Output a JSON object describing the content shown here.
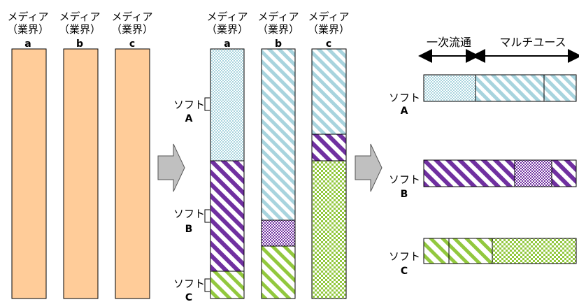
{
  "left": {
    "media": [
      {
        "label": "メディア",
        "sub": "（業界）",
        "letter": "a"
      },
      {
        "label": "メディア",
        "sub": "（業界）",
        "letter": "b"
      },
      {
        "label": "メディア",
        "sub": "（業界）",
        "letter": "c"
      }
    ]
  },
  "middle": {
    "media": [
      {
        "label": "メディア",
        "sub": "（業界）",
        "letter": "a"
      },
      {
        "label": "メディア",
        "sub": "（業界）",
        "letter": "b"
      },
      {
        "label": "メディア",
        "sub": "（業界）",
        "letter": "c"
      }
    ],
    "soft_labels": [
      {
        "label": "ソフト",
        "letter": "A"
      },
      {
        "label": "ソフト",
        "letter": "B"
      },
      {
        "label": "ソフト",
        "letter": "C"
      }
    ]
  },
  "right": {
    "header_primary": "一次流通",
    "header_multi": "マルチユース",
    "soft_labels": [
      {
        "label": "ソフト",
        "letter": "A"
      },
      {
        "label": "ソフト",
        "letter": "B"
      },
      {
        "label": "ソフト",
        "letter": "C"
      }
    ]
  },
  "colors": {
    "plain_bar": "#FFCC99",
    "soft_a": "#A8D4DE",
    "soft_b": "#7030A0",
    "soft_c": "#92C83E",
    "arrow_fill": "#C0C0C0"
  }
}
